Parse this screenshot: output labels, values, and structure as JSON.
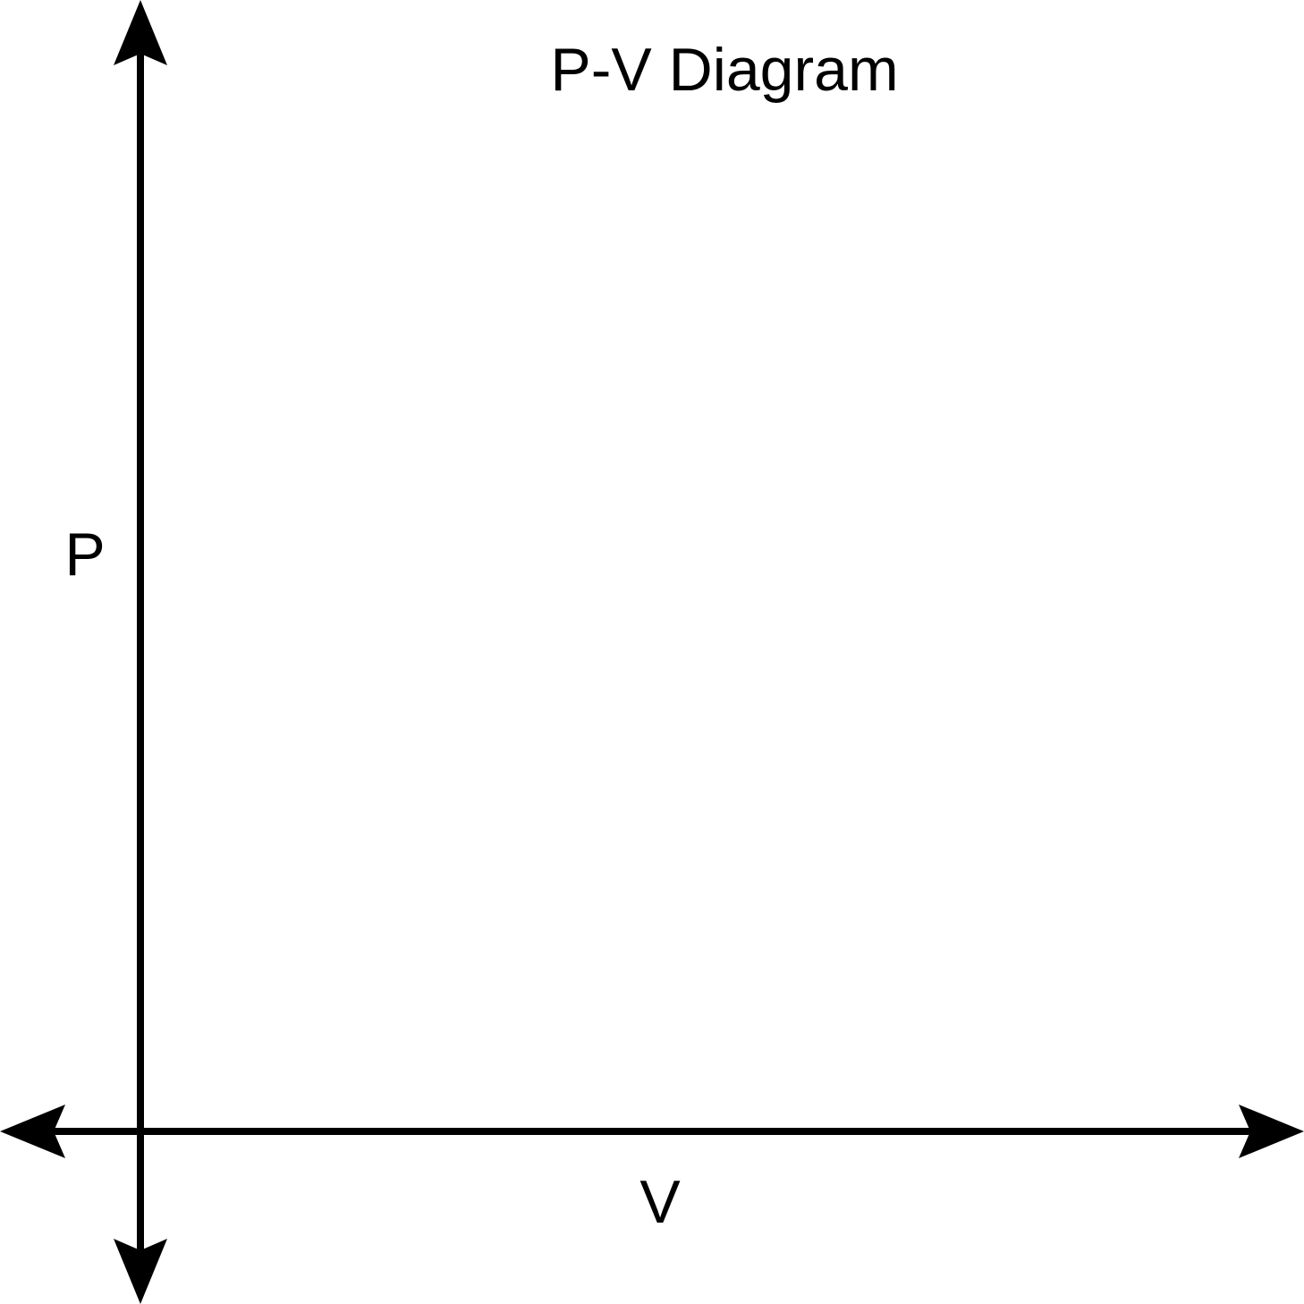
{
  "diagram": {
    "title": "P-V Diagram",
    "y_axis_label": "P",
    "x_axis_label": "V",
    "axis_color": "#000000",
    "background_color": "#ffffff",
    "y_axis_arrows": "both-ends",
    "x_axis_arrows": "both-ends"
  }
}
